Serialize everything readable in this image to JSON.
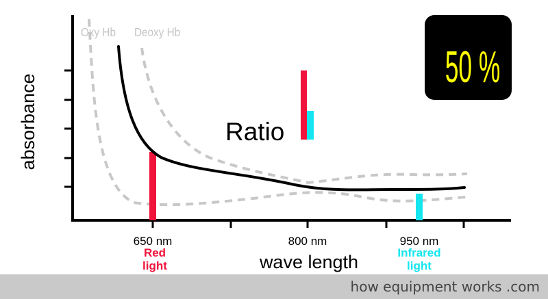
{
  "diagram": {
    "percent_box_text": "50 %",
    "y_axis_label": "absorbance",
    "x_axis_label": "wave length",
    "ratio_label": "Ratio",
    "curve_labels": {
      "oxy": "Oxy Hb",
      "deoxy": "Deoxy Hb"
    },
    "ticks": {
      "t650": "650 nm",
      "t800": "800 nm",
      "t950": "950 nm"
    },
    "light_labels": {
      "red": [
        "Red",
        "light"
      ],
      "infrared": [
        "Infrared",
        "light"
      ]
    },
    "colors": {
      "red": "#f0143c",
      "cyan": "#14e6f0",
      "curve": "#000000",
      "dashed": "#c8c8c8",
      "box_bg": "#000000",
      "box_text": "#ffff00"
    }
  },
  "footer": {
    "text": "how equipment works .com"
  }
}
